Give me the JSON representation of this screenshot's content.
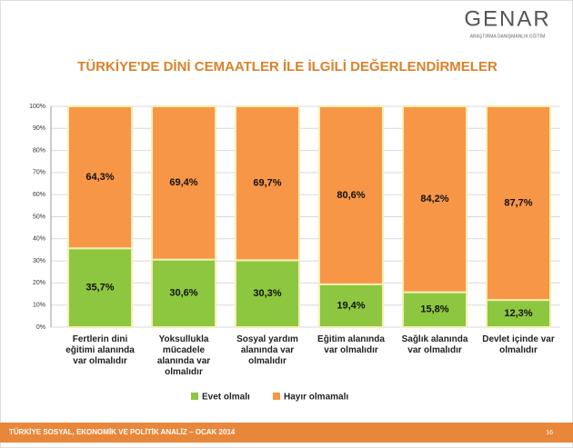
{
  "logo": {
    "name": "GENAR",
    "tagline": "ARAŞTIRMA DANIŞMANLIK EĞİTİM"
  },
  "footer": "TÜRKİYE SOSYAL, EKONOMİK VE POLİTİK ANALİZ – OCAK 2014",
  "page_number": "16",
  "chart_data": {
    "type": "stacked_bar",
    "title": "TÜRKİYE'DE DİNİ CEMAATLER İLE İLGİLİ DEĞERLENDİRMELER",
    "categories": [
      "Fertlerin dini eğitimi alanında var olmalıdır",
      "Yoksullukla mücadele alanında var olmalıdır",
      "Sosyal yardım alanında var olmalıdır",
      "Eğitim alanında var olmalıdır",
      "Sağlık alanında var olmalıdır",
      "Devlet içinde var olmalıdır"
    ],
    "series": [
      {
        "name": "Evet olmalı",
        "color": "#8dc63f",
        "values": [
          35.7,
          30.6,
          30.3,
          19.4,
          15.8,
          12.3
        ],
        "value_labels": [
          "35,7%",
          "30,6%",
          "30,3%",
          "19,4%",
          "15,8%",
          "12,3%"
        ]
      },
      {
        "name": "Hayır olmamalı",
        "color": "#f79646",
        "values": [
          64.3,
          69.4,
          69.7,
          80.6,
          84.2,
          87.7
        ],
        "value_labels": [
          "64,3%",
          "69,4%",
          "69,7%",
          "80,6%",
          "84,2%",
          "87,7%"
        ]
      }
    ],
    "ylim": [
      0,
      100
    ],
    "yticks": [
      {
        "value": 0,
        "label": "0%"
      },
      {
        "value": 10,
        "label": "10%"
      },
      {
        "value": 20,
        "label": "20%"
      },
      {
        "value": 30,
        "label": "30%"
      },
      {
        "value": 40,
        "label": "40%"
      },
      {
        "value": 50,
        "label": "50%"
      },
      {
        "value": 60,
        "label": "60%"
      },
      {
        "value": 70,
        "label": "70%"
      },
      {
        "value": 80,
        "label": "80%"
      },
      {
        "value": 90,
        "label": "90%"
      },
      {
        "value": 100,
        "label": "100%"
      }
    ],
    "grid": true,
    "legend": "bottom"
  }
}
